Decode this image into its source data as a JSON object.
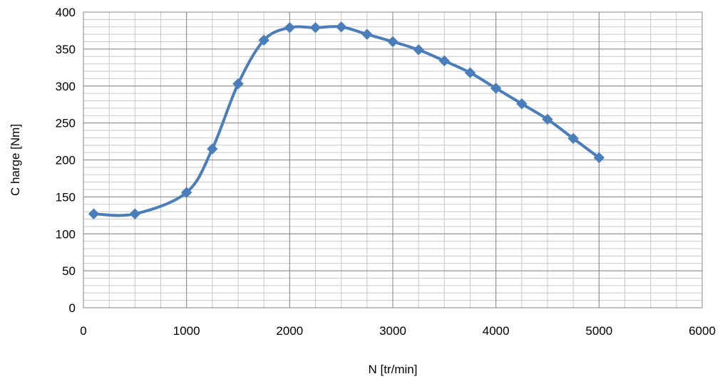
{
  "chart_data": {
    "type": "line",
    "title": "",
    "xlabel": "N [tr/min]",
    "ylabel": "C harge [Nm]",
    "xlim": [
      0,
      6000
    ],
    "ylim": [
      0,
      400
    ],
    "x_major_step": 1000,
    "y_major_step": 50,
    "x_minor_step": 250,
    "y_minor_step": 10,
    "grid": true,
    "legend": "none",
    "x_ticks": [
      "0",
      "1000",
      "2000",
      "3000",
      "4000",
      "5000",
      "6000"
    ],
    "y_ticks": [
      "0",
      "50",
      "100",
      "150",
      "200",
      "250",
      "300",
      "350",
      "400"
    ],
    "series_color": "#4a7ebb",
    "marker": "diamond",
    "smooth": true,
    "series": [
      {
        "x": [
          100,
          500,
          1000,
          1250,
          1500,
          1750,
          2000,
          2250,
          2500,
          2750,
          3000,
          3250,
          3500,
          3750,
          4000,
          4250,
          4500,
          4750,
          5000
        ],
        "values": [
          127,
          127,
          156,
          215,
          303,
          362,
          379,
          379,
          380,
          370,
          360,
          349,
          334,
          318,
          297,
          276,
          255,
          229,
          203
        ]
      }
    ]
  }
}
